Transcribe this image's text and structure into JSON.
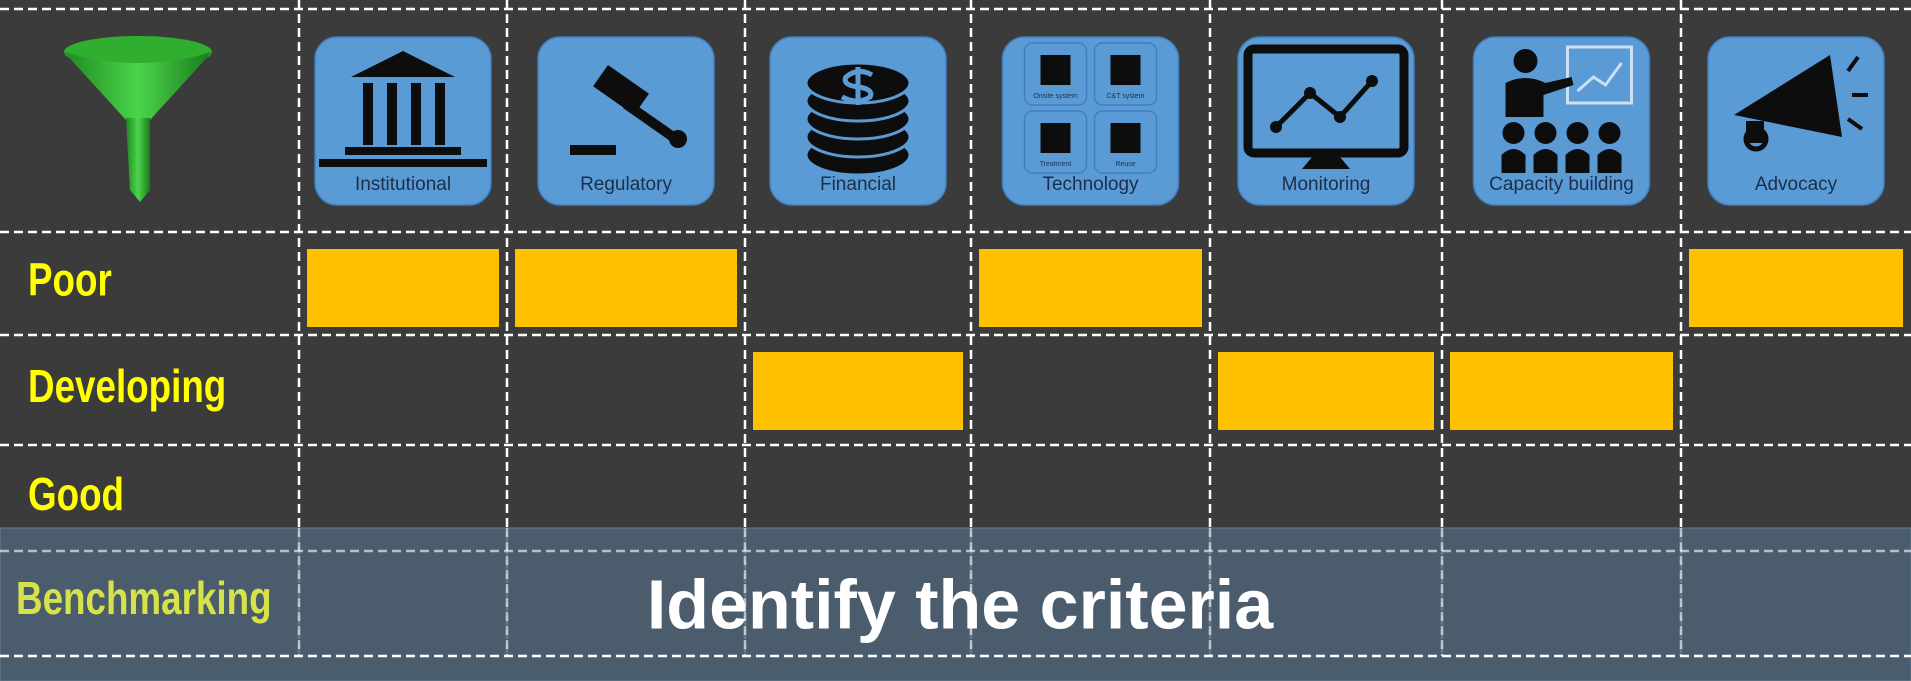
{
  "header": {
    "columns": [
      {
        "label": "Institutional"
      },
      {
        "label": "Regulatory"
      },
      {
        "label": "Financial"
      },
      {
        "label": "Technology",
        "sub_labels": [
          "Onsite system",
          "C&T system",
          "Treatment",
          "Reuse"
        ]
      },
      {
        "label": "Monitoring"
      },
      {
        "label": "Capacity building"
      },
      {
        "label": "Advocacy"
      }
    ]
  },
  "rows": [
    {
      "label": "Poor",
      "cells": [
        true,
        true,
        false,
        true,
        false,
        false,
        true
      ]
    },
    {
      "label": "Developing",
      "cells": [
        false,
        false,
        true,
        false,
        true,
        true,
        false
      ]
    },
    {
      "label": "Good",
      "cells": [
        false,
        false,
        false,
        false,
        false,
        false,
        false
      ]
    }
  ],
  "benchmark": {
    "label": "Benchmarking",
    "title": "Identify the criteria"
  }
}
